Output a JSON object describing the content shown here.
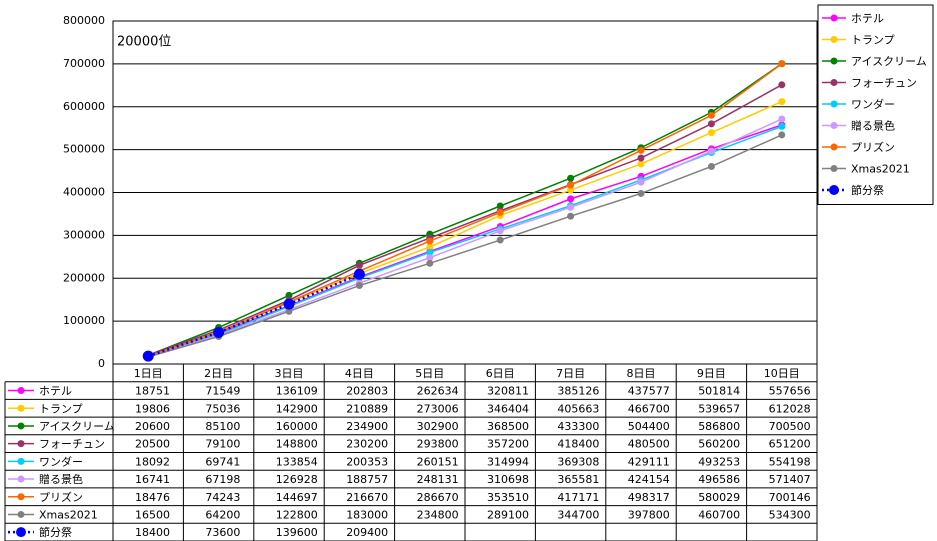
{
  "chart_data": {
    "type": "line",
    "annotation": "20000位",
    "categories": [
      "1日目",
      "2日目",
      "3日目",
      "4日目",
      "5日目",
      "6日目",
      "7日目",
      "8日目",
      "9日目",
      "10日目"
    ],
    "ylim": [
      0,
      800000
    ],
    "yticks": [
      0,
      100000,
      200000,
      300000,
      400000,
      500000,
      600000,
      700000,
      800000
    ],
    "grid": true,
    "series": [
      {
        "name": "ホテル",
        "color": "#ff00ff",
        "values": [
          18751,
          71549,
          136109,
          202803,
          262634,
          320811,
          385126,
          437577,
          501814,
          557656
        ]
      },
      {
        "name": "トランプ",
        "color": "#ffcc00",
        "values": [
          19806,
          75036,
          142900,
          210889,
          273006,
          346404,
          405663,
          466700,
          539657,
          612028
        ]
      },
      {
        "name": "アイスクリーム",
        "color": "#008000",
        "values": [
          20600,
          85100,
          160000,
          234900,
          302900,
          368500,
          433300,
          504400,
          586800,
          700500
        ]
      },
      {
        "name": "フォーチュン",
        "color": "#993366",
        "values": [
          20500,
          79100,
          148800,
          230200,
          293800,
          357200,
          418400,
          480500,
          560200,
          651200
        ]
      },
      {
        "name": "ワンダー",
        "color": "#00ccff",
        "values": [
          18092,
          69741,
          133854,
          200353,
          260151,
          314994,
          369308,
          429111,
          493253,
          554198
        ]
      },
      {
        "name": "贈る景色",
        "color": "#cc99ff",
        "values": [
          16741,
          67198,
          126928,
          188757,
          248131,
          310698,
          365581,
          424154,
          496586,
          571407
        ]
      },
      {
        "name": "プリズン",
        "color": "#ff6600",
        "values": [
          18476,
          74243,
          144697,
          216670,
          286670,
          353510,
          417171,
          498317,
          580029,
          700146
        ]
      },
      {
        "name": "Xmas2021",
        "color": "#808080",
        "values": [
          16500,
          64200,
          122800,
          183000,
          234800,
          289100,
          344700,
          397800,
          460700,
          534300
        ]
      },
      {
        "name": "節分祭",
        "color": "#0000ff",
        "style": "dotted",
        "values": [
          18400,
          73600,
          139600,
          209400,
          null,
          null,
          null,
          null,
          null,
          null
        ]
      }
    ]
  }
}
